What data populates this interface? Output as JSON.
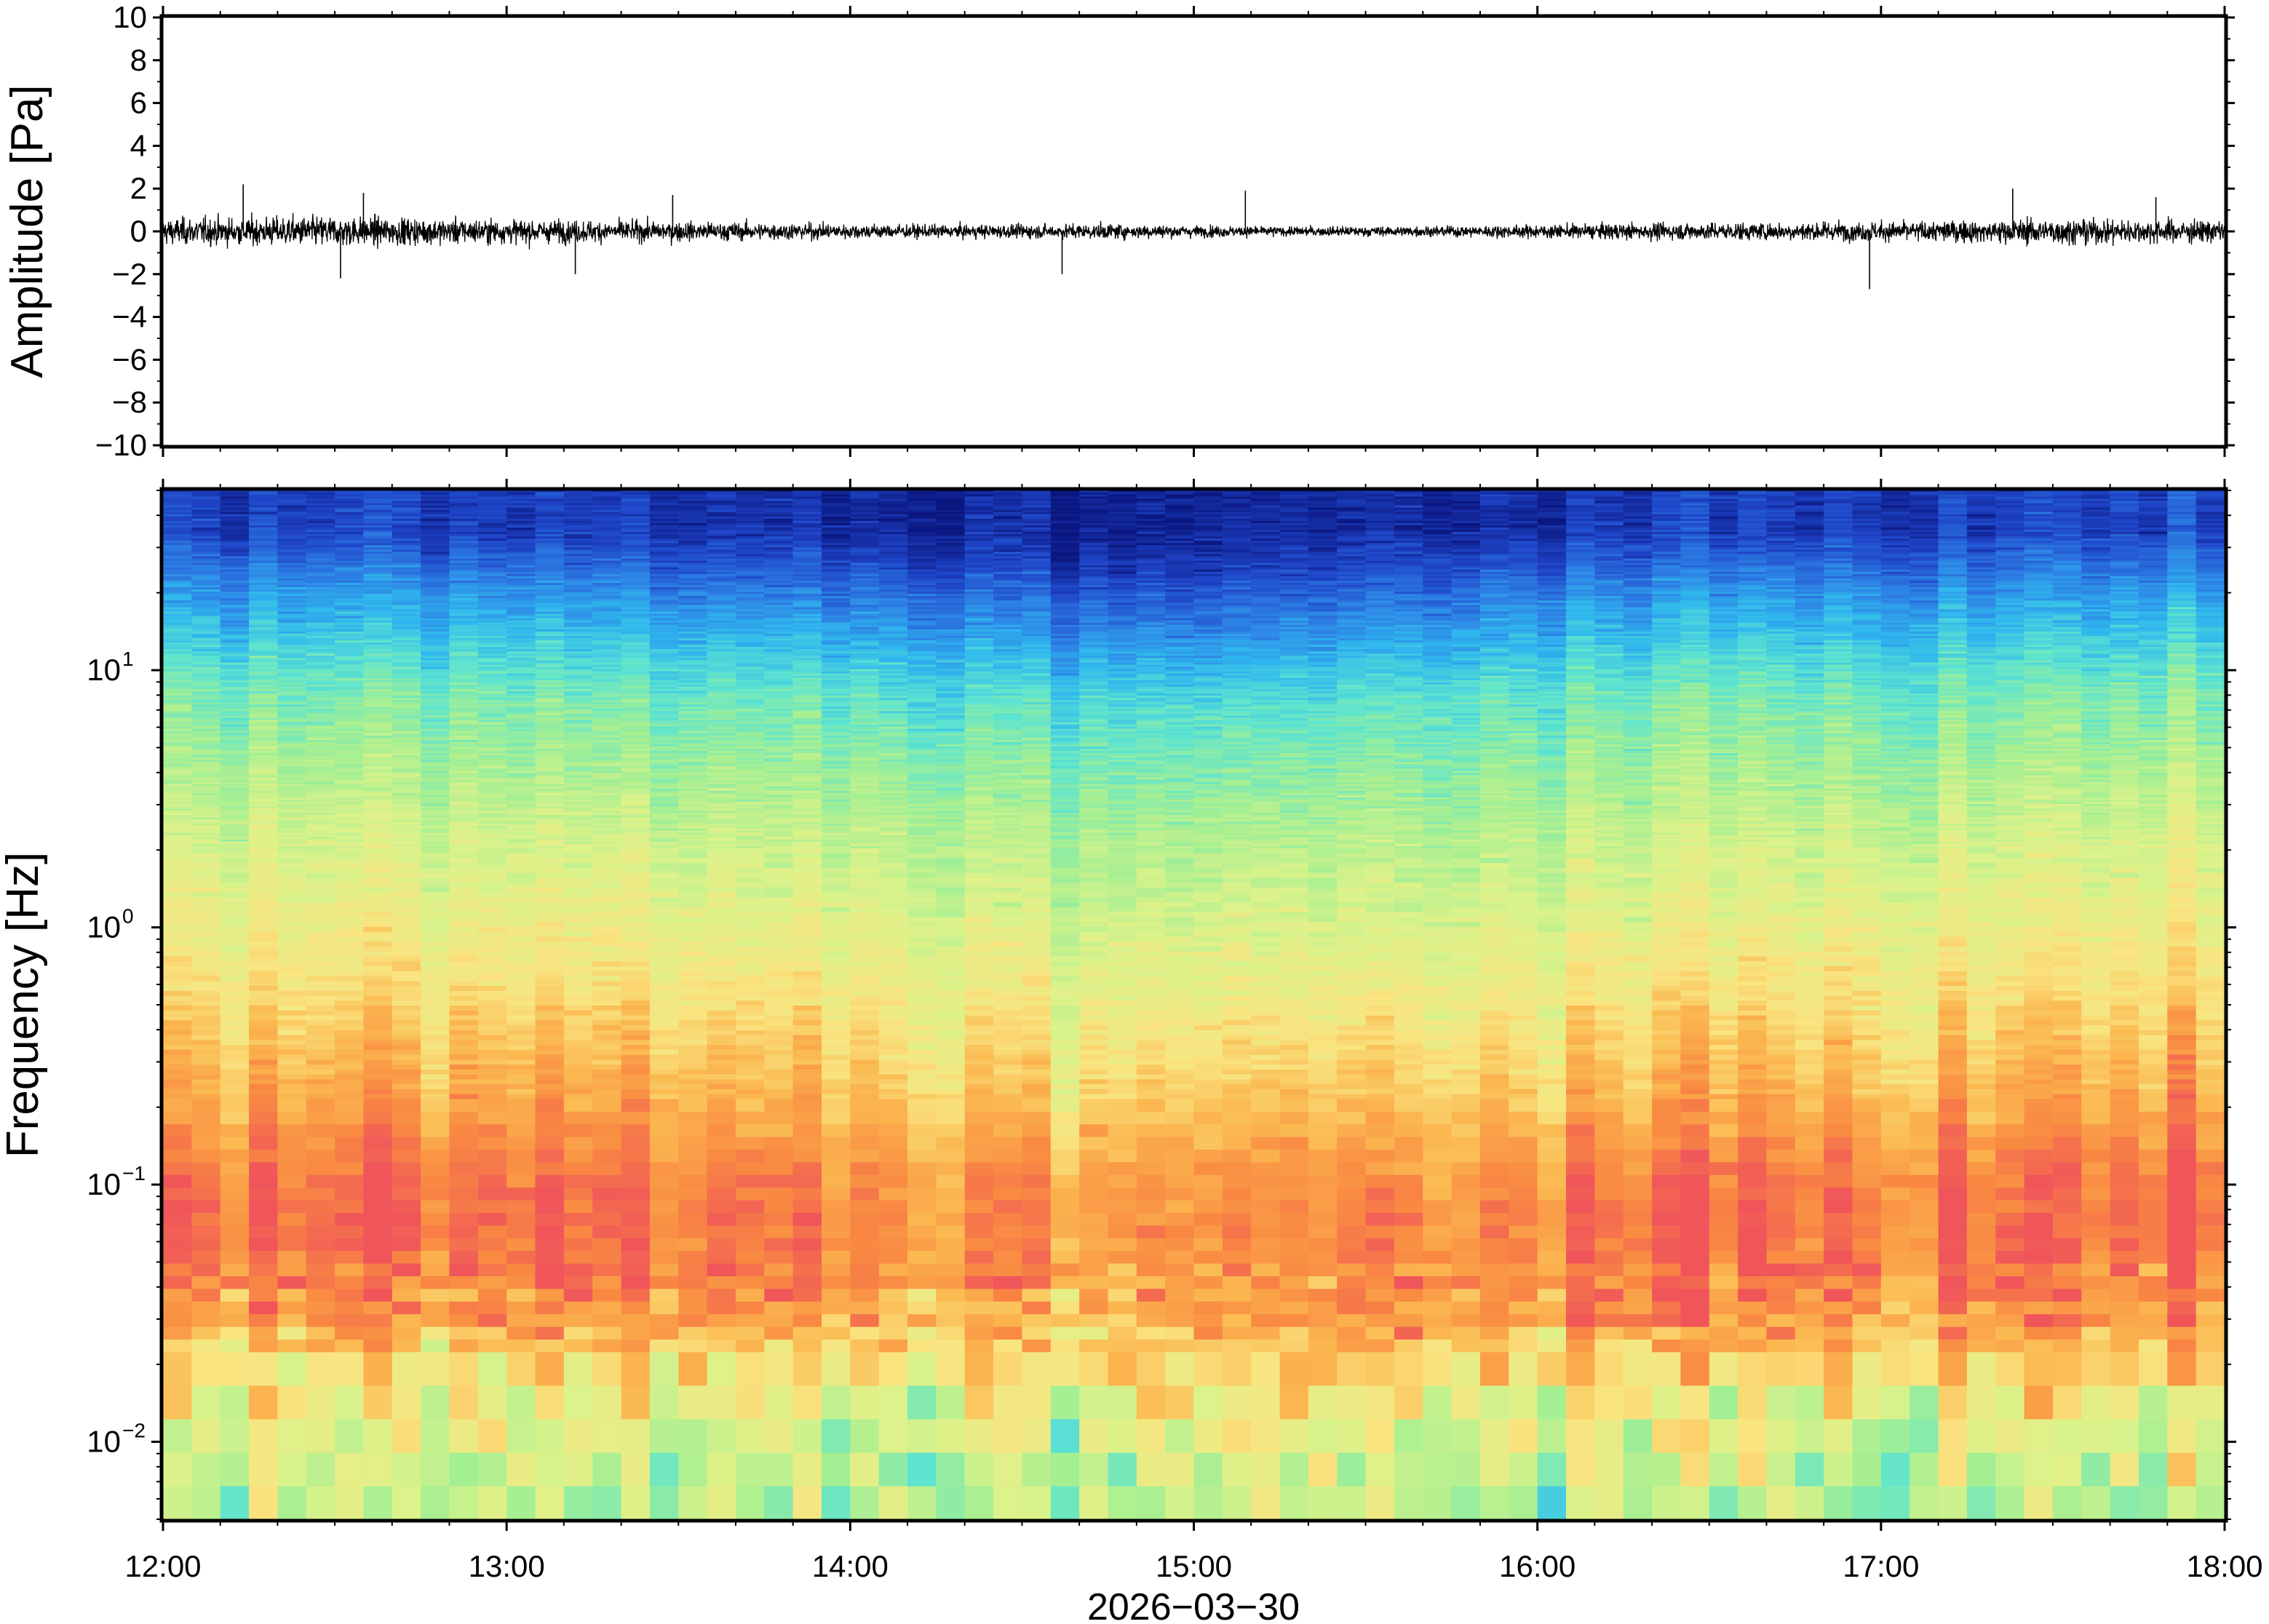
{
  "chart_data": [
    {
      "type": "line",
      "panel": "waveform",
      "ylabel": "Amplitude [Pa]",
      "ylim": [
        -10,
        10
      ],
      "y_ticks": [
        {
          "value": 10,
          "label": "10"
        },
        {
          "value": 8,
          "label": "8"
        },
        {
          "value": 6,
          "label": "6"
        },
        {
          "value": 4,
          "label": "4"
        },
        {
          "value": 2,
          "label": "2"
        },
        {
          "value": 0,
          "label": "0"
        },
        {
          "value": -2,
          "label": "−2"
        },
        {
          "value": -4,
          "label": "−4"
        },
        {
          "value": -6,
          "label": "−6"
        },
        {
          "value": -8,
          "label": "−8"
        },
        {
          "value": -10,
          "label": "−10"
        }
      ],
      "xlim": [
        "12:00",
        "18:00"
      ],
      "grid": false,
      "series": [
        {
          "color": "#000000",
          "description_hours": [
            12.0,
            12.25,
            12.5,
            12.75,
            13.0,
            13.25,
            13.5,
            13.75,
            14.0,
            14.25,
            14.5,
            14.75,
            15.0,
            15.25,
            15.5,
            15.75,
            16.0,
            16.25,
            16.5,
            16.75,
            17.0,
            17.25,
            17.5,
            17.75,
            18.0
          ],
          "envelope_pa": [
            1.2,
            1.3,
            1.4,
            1.2,
            1.1,
            1.0,
            0.9,
            0.8,
            0.7,
            0.6,
            0.65,
            0.7,
            0.55,
            0.45,
            0.45,
            0.5,
            0.6,
            0.75,
            0.8,
            0.85,
            0.9,
            1.0,
            1.2,
            1.1,
            1.0
          ],
          "peaks": [
            {
              "x": "12:14",
              "y": 2.2
            },
            {
              "x": "12:31",
              "y": -2.2
            },
            {
              "x": "12:35",
              "y": 1.8
            },
            {
              "x": "13:12",
              "y": -2.0
            },
            {
              "x": "13:29",
              "y": 1.7
            },
            {
              "x": "14:37",
              "y": -2.0
            },
            {
              "x": "15:09",
              "y": 1.9
            },
            {
              "x": "16:58",
              "y": -2.7
            },
            {
              "x": "17:23",
              "y": 2.0
            },
            {
              "x": "17:48",
              "y": 1.6
            }
          ]
        }
      ]
    },
    {
      "type": "heatmap",
      "panel": "spectrogram",
      "ylabel": "Frequency [Hz]",
      "xlabel": "2026−03−30",
      "y_scale": "log",
      "ylim": [
        0.005,
        50
      ],
      "y_ticks": [
        {
          "value": 10,
          "base": "10",
          "exp": "1"
        },
        {
          "value": 1,
          "base": "10",
          "exp": "0"
        },
        {
          "value": 0.1,
          "base": "10",
          "exp": "−1"
        },
        {
          "value": 0.01,
          "base": "10",
          "exp": "−2"
        }
      ],
      "x_ticks": [
        "12:00",
        "13:00",
        "14:00",
        "15:00",
        "16:00",
        "17:00",
        "18:00"
      ],
      "xlim": [
        "12:00",
        "18:00"
      ],
      "colormap": "red-orange-yellow-green-cyan-blue-navy (high to low power)",
      "colormap_stops": [
        "#f0555a",
        "#f98a42",
        "#fbb850",
        "#f9e480",
        "#dcf28a",
        "#a4ef93",
        "#5ee4cf",
        "#30b8ee",
        "#2d7fe4",
        "#1f45c8",
        "#0b1780"
      ],
      "grid": false,
      "frequency_rows_hz": [
        0.007,
        0.01,
        0.015,
        0.02,
        0.03,
        0.045,
        0.07,
        0.1,
        0.15,
        0.2,
        0.3,
        0.5,
        0.8,
        1.2,
        2,
        3,
        5,
        8,
        12,
        18,
        25,
        35
      ],
      "relative_power_by_hour": [
        {
          "hour": 12.0,
          "values": [
            0.58,
            0.6,
            0.65,
            0.7,
            0.85,
            0.93,
            0.96,
            0.95,
            0.9,
            0.85,
            0.8,
            0.73,
            0.68,
            0.64,
            0.6,
            0.56,
            0.5,
            0.45,
            0.37,
            0.28,
            0.2,
            0.1
          ]
        },
        {
          "hour": 13.0,
          "values": [
            0.56,
            0.58,
            0.64,
            0.7,
            0.84,
            0.92,
            0.94,
            0.94,
            0.88,
            0.84,
            0.79,
            0.72,
            0.67,
            0.63,
            0.59,
            0.55,
            0.49,
            0.44,
            0.35,
            0.26,
            0.17,
            0.08
          ]
        },
        {
          "hour": 14.0,
          "values": [
            0.52,
            0.57,
            0.64,
            0.7,
            0.83,
            0.9,
            0.92,
            0.91,
            0.86,
            0.81,
            0.76,
            0.7,
            0.65,
            0.61,
            0.57,
            0.53,
            0.47,
            0.41,
            0.32,
            0.22,
            0.13,
            0.05
          ]
        },
        {
          "hour": 15.0,
          "values": [
            0.55,
            0.6,
            0.67,
            0.72,
            0.8,
            0.84,
            0.86,
            0.85,
            0.79,
            0.74,
            0.69,
            0.64,
            0.6,
            0.56,
            0.52,
            0.48,
            0.42,
            0.35,
            0.24,
            0.14,
            0.06,
            0.02
          ]
        },
        {
          "hour": 16.0,
          "values": [
            0.55,
            0.6,
            0.67,
            0.74,
            0.86,
            0.92,
            0.93,
            0.91,
            0.85,
            0.8,
            0.75,
            0.69,
            0.64,
            0.6,
            0.56,
            0.52,
            0.47,
            0.42,
            0.33,
            0.24,
            0.15,
            0.06
          ]
        },
        {
          "hour": 17.0,
          "values": [
            0.52,
            0.58,
            0.66,
            0.74,
            0.87,
            0.94,
            0.95,
            0.94,
            0.88,
            0.83,
            0.78,
            0.72,
            0.67,
            0.63,
            0.59,
            0.55,
            0.49,
            0.44,
            0.36,
            0.27,
            0.18,
            0.09
          ]
        },
        {
          "hour": 18.0,
          "values": [
            0.55,
            0.6,
            0.66,
            0.72,
            0.86,
            0.93,
            0.95,
            0.94,
            0.89,
            0.84,
            0.79,
            0.73,
            0.68,
            0.64,
            0.6,
            0.56,
            0.5,
            0.45,
            0.37,
            0.28,
            0.19,
            0.1
          ]
        }
      ]
    }
  ]
}
